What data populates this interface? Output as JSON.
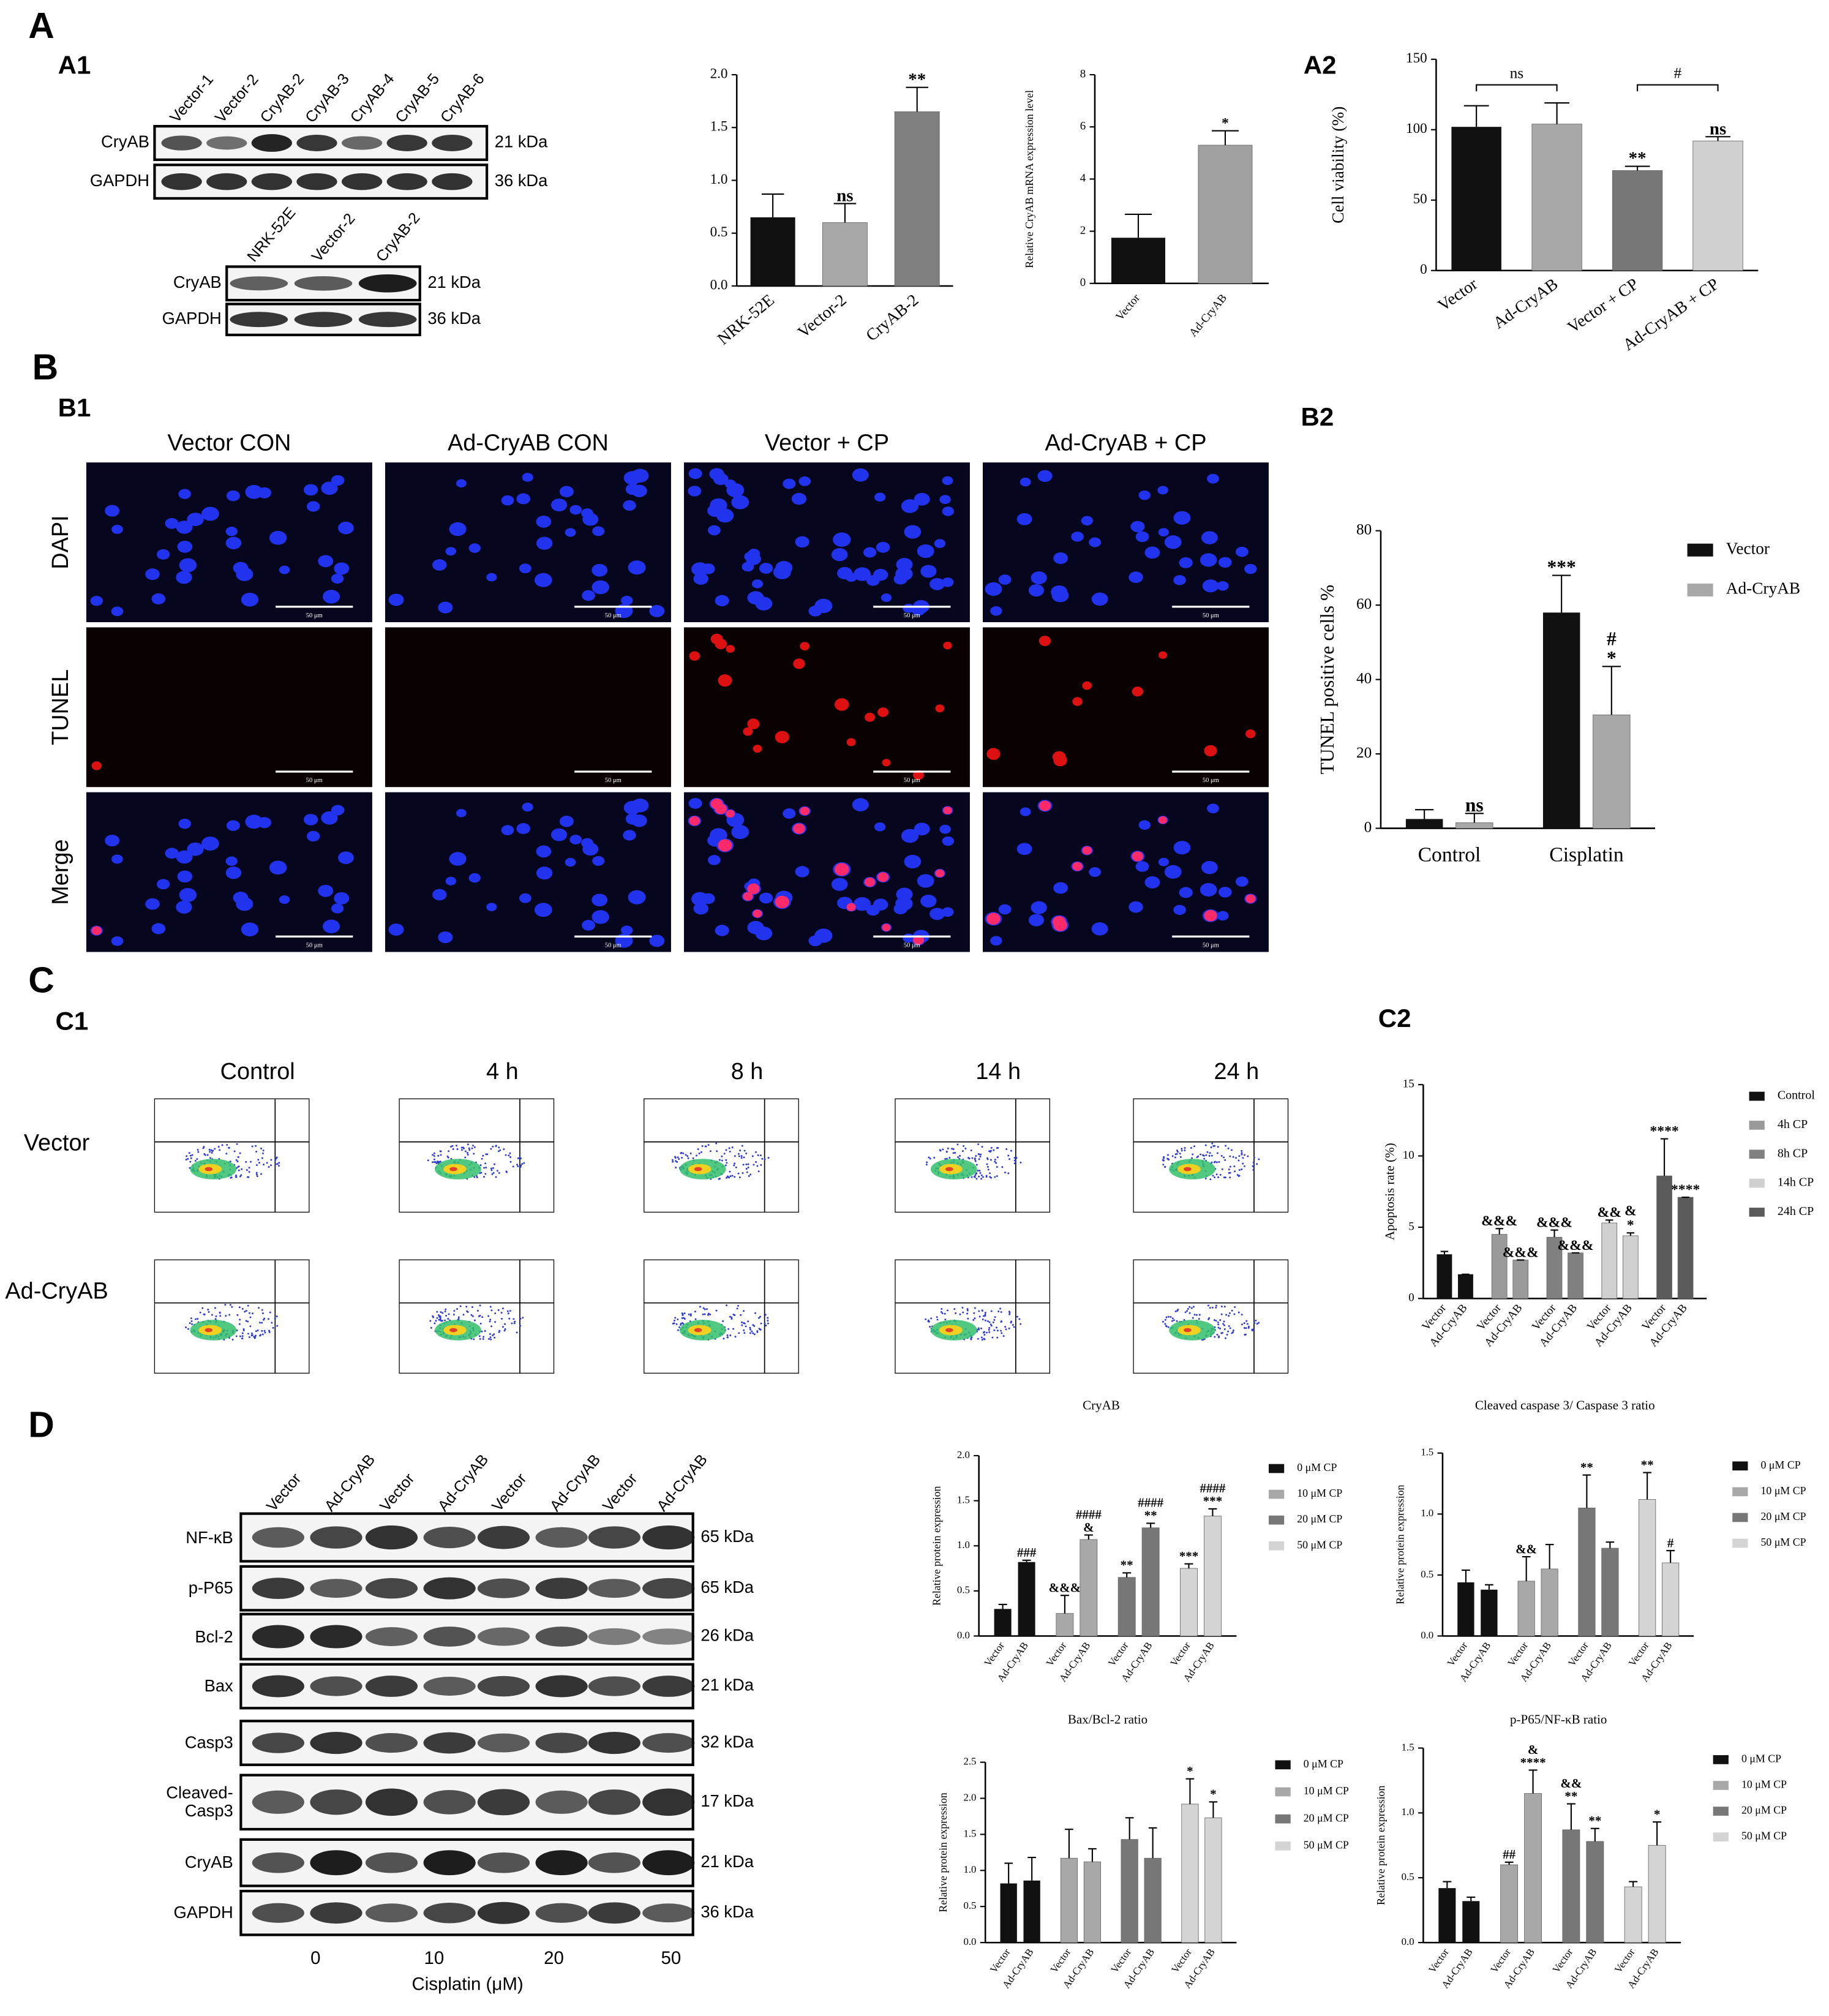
{
  "panel_labels": [
    "A",
    "A1",
    "A2",
    "B",
    "B1",
    "B2",
    "C",
    "C1",
    "C2",
    "D"
  ],
  "blot_a1": {
    "lanes": [
      "Vector-1",
      "Vector-2",
      "CryAB-2",
      "CryAB-3",
      "CryAB-4",
      "CryAB-5",
      "CryAB-6"
    ],
    "rows": [
      "CryAB",
      "GAPDH"
    ],
    "sizes": [
      "21 kDa",
      "36 kDa"
    ]
  },
  "blot_a1b": {
    "lanes": [
      "NRK-52E",
      "Vector-2",
      "CryAB-2"
    ],
    "rows": [
      "CryAB",
      "GAPDH"
    ],
    "sizes": [
      "21 kDa",
      "36 kDa"
    ]
  },
  "tunel": {
    "columns": [
      "Vector CON",
      "Ad-CryAB CON",
      "Vector + CP",
      "Ad-CryAB + CP"
    ],
    "rows": [
      "DAPI",
      "TUNEL",
      "Merge"
    ],
    "scale_bar": "50 μm"
  },
  "flow": {
    "columns": [
      "Control",
      "4 h",
      "8 h",
      "14 h",
      "24 h"
    ],
    "rows": [
      "Vector",
      "Ad-CryAB"
    ]
  },
  "blot_d": {
    "lanes": [
      "Vector",
      "Ad-CryAB",
      "Vector",
      "Ad-CryAB",
      "Vector",
      "Ad-CryAB",
      "Vector",
      "Ad-CryAB"
    ],
    "rows": [
      "NF-κB",
      "p-P65",
      "Bcl-2",
      "Bax",
      "Casp3",
      "Cleaved-Casp3",
      "CryAB",
      "GAPDH"
    ],
    "sizes": [
      "65 kDa",
      "65 kDa",
      "26 kDa",
      "21 kDa",
      "32 kDa",
      "17 kDa",
      "21 kDa",
      "36 kDa"
    ],
    "doses": [
      "0",
      "10",
      "20",
      "50"
    ],
    "xlabel": "Cisplatin (μM)"
  },
  "chart_data": [
    {
      "type": "bar",
      "categories": [
        "NRK-52E",
        "Vector-2",
        "CryAB-2"
      ],
      "values": [
        0.65,
        0.6,
        1.65
      ],
      "errors": [
        0.22,
        0.18,
        0.23
      ],
      "colors": [
        "#111111",
        "#a8a8a8",
        "#808080"
      ],
      "significance": [
        null,
        "ns",
        "**"
      ],
      "ylim": [
        0,
        2
      ],
      "yticks": [
        {
          "value": 0,
          "label": "0.0"
        },
        0.5,
        {
          "value": 1,
          "label": "1.0"
        },
        1.5,
        {
          "value": 2,
          "label": "2.0"
        }
      ]
    },
    {
      "type": "bar",
      "ylabel": "Relative CryAB mRNA expression level",
      "categories": [
        "Vector",
        "Ad-CryAB"
      ],
      "values": [
        1.75,
        5.3
      ],
      "errors": [
        0.9,
        0.55
      ],
      "colors": [
        "#111111",
        "#a0a0a0"
      ],
      "significance": [
        null,
        "*"
      ],
      "ylim": [
        0,
        8
      ],
      "yticks": [
        0,
        2,
        4,
        6,
        8
      ]
    },
    {
      "type": "bar",
      "ylabel": "Cell viability (%)",
      "categories": [
        "Vector",
        "Ad-CryAB",
        "Vector + CP",
        "Ad-CryAB + CP"
      ],
      "values": [
        102,
        104,
        71,
        92
      ],
      "errors": [
        15,
        15,
        3,
        3
      ],
      "colors": [
        "#111111",
        "#a8a8a8",
        "#777777",
        "#d0d0d0"
      ],
      "significance": [
        null,
        null,
        "**",
        "ns"
      ],
      "brackets": [
        {
          "label": "ns",
          "from": 0,
          "to": 1
        },
        {
          "label": "#",
          "from": 2,
          "to": 3
        }
      ],
      "ylim": [
        0,
        150
      ],
      "yticks": [
        0,
        50,
        100,
        150
      ]
    },
    {
      "type": "grouped_bar",
      "ylabel": "TUNEL positive cells %",
      "categories": [
        "Control",
        "Cisplatin"
      ],
      "series": [
        {
          "name": "Vector",
          "color": "#111111",
          "values": [
            2.5,
            58
          ],
          "errors": [
            2.5,
            10
          ],
          "significance": [
            null,
            "***"
          ]
        },
        {
          "name": "Ad-CryAB",
          "color": "#a8a8a8",
          "values": [
            1.5,
            30.5
          ],
          "errors": [
            2.5,
            13
          ],
          "significance": [
            "ns",
            [
              "#",
              "*"
            ]
          ]
        }
      ],
      "ylim": [
        0,
        80
      ],
      "yticks": [
        0,
        20,
        40,
        60,
        80
      ]
    },
    {
      "type": "paired_bar",
      "ylabel": "Apoptosis rate (%)",
      "categories": [
        "Vector",
        "Ad-CryAB"
      ],
      "series": [
        {
          "name": "Control",
          "color": "#111111",
          "values": [
            3.1,
            1.7
          ],
          "errors": [
            0.2,
            0
          ],
          "significance": [
            null,
            null
          ]
        },
        {
          "name": "4h CP",
          "color": "#9a9a9a",
          "values": [
            4.5,
            2.7
          ],
          "errors": [
            0.4,
            0
          ],
          "significance": [
            "&&&",
            "&&&"
          ]
        },
        {
          "name": "8h CP",
          "color": "#808080",
          "values": [
            4.3,
            3.2
          ],
          "errors": [
            0.5,
            0
          ],
          "significance": [
            "&&&",
            "&&&"
          ]
        },
        {
          "name": "14h CP",
          "color": "#d0d0d0",
          "values": [
            5.3,
            4.4
          ],
          "errors": [
            0.2,
            0.2
          ],
          "significance": [
            "&&",
            [
              "&",
              "*"
            ]
          ]
        },
        {
          "name": "24h CP",
          "color": "#5a5a5a",
          "values": [
            8.6,
            7.1
          ],
          "errors": [
            2.6,
            0
          ],
          "significance": [
            "****",
            "****"
          ]
        }
      ],
      "ylim": [
        0,
        15
      ],
      "yticks": [
        0,
        5,
        10,
        15
      ]
    },
    {
      "type": "paired_bar",
      "title": "CryAB",
      "ylabel": "Relative protein expression",
      "categories": [
        "Vector",
        "Ad-CryAB"
      ],
      "series": [
        {
          "name": "0 μM CP",
          "color": "#111111",
          "values": [
            0.3,
            0.82
          ],
          "errors": [
            0.05,
            0.02
          ],
          "significance": [
            null,
            "###"
          ]
        },
        {
          "name": "10 μM CP",
          "color": "#a8a8a8",
          "values": [
            0.25,
            1.07
          ],
          "errors": [
            0.2,
            0.05
          ],
          "significance": [
            "&&&",
            [
              "####",
              "&"
            ]
          ]
        },
        {
          "name": "20 μM CP",
          "color": "#777777",
          "values": [
            0.65,
            1.2
          ],
          "errors": [
            0.05,
            0.05
          ],
          "significance": [
            "**",
            [
              "####",
              "**"
            ]
          ]
        },
        {
          "name": "50 μM CP",
          "color": "#d4d4d4",
          "values": [
            0.75,
            1.33
          ],
          "errors": [
            0.05,
            0.08
          ],
          "significance": [
            "***",
            [
              "####",
              "***"
            ]
          ]
        }
      ],
      "ylim": [
        0,
        2
      ],
      "yticks": [
        {
          "value": 0,
          "label": "0.0"
        },
        0.5,
        {
          "value": 1,
          "label": "1.0"
        },
        1.5,
        {
          "value": 2,
          "label": "2.0"
        }
      ]
    },
    {
      "type": "paired_bar",
      "title": "Cleaved caspase 3/ Caspase 3 ratio",
      "ylabel": "Relative protein expression",
      "categories": [
        "Vector",
        "Ad-CryAB"
      ],
      "series": [
        {
          "name": "0 μM CP",
          "color": "#111111",
          "values": [
            0.44,
            0.38
          ],
          "errors": [
            0.1,
            0.04
          ],
          "significance": [
            null,
            null
          ]
        },
        {
          "name": "10 μM CP",
          "color": "#a8a8a8",
          "values": [
            0.45,
            0.55
          ],
          "errors": [
            0.2,
            0.2
          ],
          "significance": [
            "&&",
            null
          ]
        },
        {
          "name": "20 μM CP",
          "color": "#777777",
          "values": [
            1.05,
            0.72
          ],
          "errors": [
            0.27,
            0.05
          ],
          "significance": [
            "**",
            null
          ]
        },
        {
          "name": "50 μM CP",
          "color": "#d4d4d4",
          "values": [
            1.12,
            0.6
          ],
          "errors": [
            0.22,
            0.1
          ],
          "significance": [
            "**",
            "#"
          ]
        }
      ],
      "ylim": [
        0,
        1.5
      ],
      "yticks": [
        {
          "value": 0,
          "label": "0.0"
        },
        0.5,
        {
          "value": 1,
          "label": "1.0"
        },
        1.5
      ]
    },
    {
      "type": "paired_bar",
      "title": "Bax/Bcl-2 ratio",
      "ylabel": "Relative protein expression",
      "categories": [
        "Vector",
        "Ad-CryAB"
      ],
      "series": [
        {
          "name": "0 μM CP",
          "color": "#111111",
          "values": [
            0.82,
            0.86
          ],
          "errors": [
            0.28,
            0.32
          ],
          "significance": [
            null,
            null
          ]
        },
        {
          "name": "10 μM CP",
          "color": "#a8a8a8",
          "values": [
            1.17,
            1.12
          ],
          "errors": [
            0.4,
            0.18
          ],
          "significance": [
            null,
            null
          ]
        },
        {
          "name": "20 μM CP",
          "color": "#777777",
          "values": [
            1.43,
            1.17
          ],
          "errors": [
            0.3,
            0.42
          ],
          "significance": [
            null,
            null
          ]
        },
        {
          "name": "50 μM CP",
          "color": "#d4d4d4",
          "values": [
            1.92,
            1.73
          ],
          "errors": [
            0.35,
            0.22
          ],
          "significance": [
            "*",
            "*"
          ]
        }
      ],
      "ylim": [
        0,
        2.5
      ],
      "yticks": [
        {
          "value": 0,
          "label": "0.0"
        },
        0.5,
        {
          "value": 1,
          "label": "1.0"
        },
        1.5,
        {
          "value": 2,
          "label": "2.0"
        },
        2.5
      ]
    },
    {
      "type": "paired_bar",
      "title": "p-P65/NF-κB ratio",
      "ylabel": "Relative protein expression",
      "categories": [
        "Vector",
        "Ad-CryAB"
      ],
      "series": [
        {
          "name": "0 μM CP",
          "color": "#111111",
          "values": [
            0.42,
            0.32
          ],
          "errors": [
            0.05,
            0.03
          ],
          "significance": [
            null,
            null
          ]
        },
        {
          "name": "10 μM CP",
          "color": "#a8a8a8",
          "values": [
            0.6,
            1.15
          ],
          "errors": [
            0.02,
            0.18
          ],
          "significance": [
            "##",
            [
              "&",
              "****"
            ]
          ]
        },
        {
          "name": "20 μM CP",
          "color": "#777777",
          "values": [
            0.87,
            0.78
          ],
          "errors": [
            0.2,
            0.1
          ],
          "significance": [
            [
              "&&",
              "**"
            ],
            "**"
          ]
        },
        {
          "name": "50 μM CP",
          "color": "#d4d4d4",
          "values": [
            0.43,
            0.75
          ],
          "errors": [
            0.04,
            0.18
          ],
          "significance": [
            null,
            "*"
          ]
        }
      ],
      "ylim": [
        0,
        1.5
      ],
      "yticks": [
        {
          "value": 0,
          "label": "0.0"
        },
        0.5,
        {
          "value": 1,
          "label": "1.0"
        },
        1.5
      ]
    }
  ]
}
